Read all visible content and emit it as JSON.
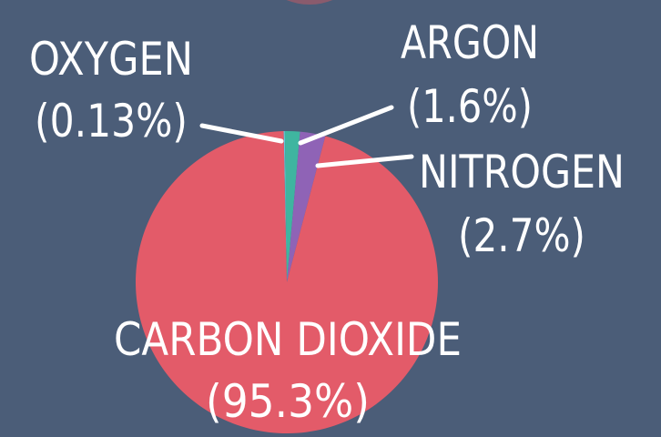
{
  "chart_data": {
    "type": "pie",
    "categories": [
      "OXYGEN",
      "ARGON",
      "NITROGEN",
      "CARBON DIOXIDE"
    ],
    "values": [
      0.13,
      1.6,
      2.7,
      95.3
    ],
    "value_labels": [
      "(0.13%)",
      "(1.6%)",
      "(2.7%)",
      "(95.3%)"
    ],
    "colors": [
      "#62c8da",
      "#3fb5a0",
      "#8f63b6",
      "#e35b69"
    ]
  }
}
